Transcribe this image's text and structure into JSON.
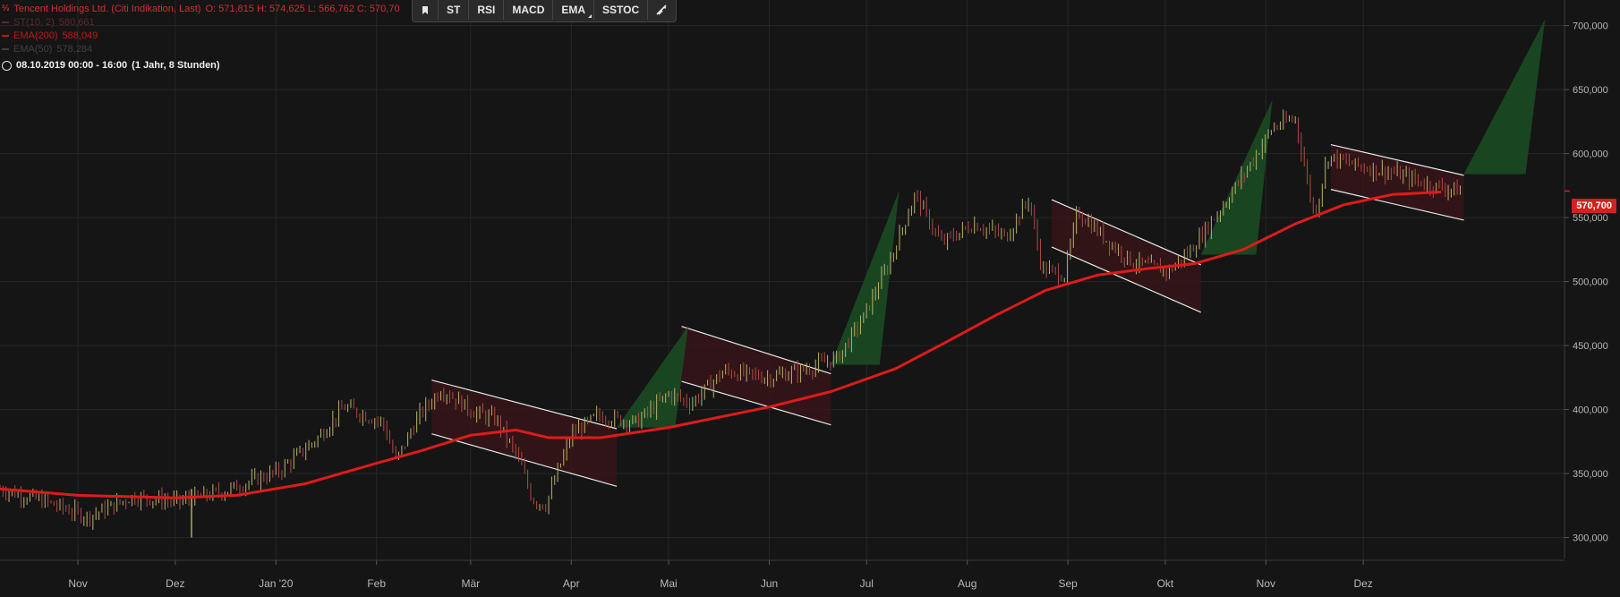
{
  "header": {
    "title": "Tencent Holdings Ltd. (Citi Indikation, Last)",
    "ohlc": "O: 571,815  H: 574,625  L: 566,762  C: 570,70",
    "indicators": [
      {
        "label": "ST(10, 2)",
        "value": "580,661",
        "color": "#5a2a2a"
      },
      {
        "label": "EMA(200)",
        "value": "588,049",
        "color": "#c01818"
      },
      {
        "label": "EMA(50)",
        "value": "578,284",
        "color": "#404040"
      }
    ],
    "range": "08.10.2019 00:00 - 16:00",
    "range_detail": "(1 Jahr, 8 Stunden)"
  },
  "toolbar": {
    "items": [
      {
        "label": "",
        "icon": "bookmark-icon"
      },
      {
        "label": "ST"
      },
      {
        "label": "RSI"
      },
      {
        "label": "MACD"
      },
      {
        "label": "EMA",
        "dropdown": true
      },
      {
        "label": "SSTOC"
      },
      {
        "label": "",
        "icon": "draw-tool-icon"
      }
    ]
  },
  "last_price": "570,700",
  "colors": {
    "background": "#151515",
    "ema": "#e01a1a",
    "channel_fill": "#3a1418",
    "target_fill": "#1b4a22",
    "grid": "#262626",
    "axis_text": "#b8b8b8"
  },
  "chart_data": {
    "type": "ohlc",
    "y_axis": {
      "ticks": [
        "300,000",
        "350,000",
        "400,000",
        "450,000",
        "500,000",
        "550,000",
        "600,000",
        "650,000",
        "700,000"
      ],
      "ylim": [
        285000,
        720000
      ]
    },
    "x_axis": {
      "ticks": [
        "Nov",
        "Dez",
        "Jan '20",
        "Feb",
        "Mär",
        "Apr",
        "Mai",
        "Jun",
        "Jul",
        "Aug",
        "Sep",
        "Okt",
        "Nov",
        "Dez"
      ]
    },
    "price_path": [
      [
        "2019-10-08",
        338
      ],
      [
        "2019-10-22",
        328
      ],
      [
        "2019-11-04",
        316
      ],
      [
        "2019-11-18",
        332
      ],
      [
        "2019-12-02",
        328
      ],
      [
        "2019-12-16",
        336
      ],
      [
        "2020-01-02",
        352
      ],
      [
        "2020-01-14",
        378
      ],
      [
        "2020-01-22",
        402
      ],
      [
        "2020-02-03",
        390
      ],
      [
        "2020-02-07",
        360
      ],
      [
        "2020-02-14",
        395
      ],
      [
        "2020-02-21",
        416
      ],
      [
        "2020-03-02",
        398
      ],
      [
        "2020-03-09",
        392
      ],
      [
        "2020-03-16",
        360
      ],
      [
        "2020-03-20",
        330
      ],
      [
        "2020-03-24",
        325
      ],
      [
        "2020-04-01",
        380
      ],
      [
        "2020-04-09",
        395
      ],
      [
        "2020-04-21",
        390
      ],
      [
        "2020-05-01",
        412
      ],
      [
        "2020-05-08",
        405
      ],
      [
        "2020-05-18",
        430
      ],
      [
        "2020-06-01",
        425
      ],
      [
        "2020-06-10",
        430
      ],
      [
        "2020-06-22",
        440
      ],
      [
        "2020-06-30",
        472
      ],
      [
        "2020-07-08",
        515
      ],
      [
        "2020-07-16",
        568
      ],
      [
        "2020-07-24",
        530
      ],
      [
        "2020-08-03",
        545
      ],
      [
        "2020-08-13",
        535
      ],
      [
        "2020-08-20",
        565
      ],
      [
        "2020-08-24",
        510
      ],
      [
        "2020-08-31",
        505
      ],
      [
        "2020-09-04",
        555
      ],
      [
        "2020-09-14",
        530
      ],
      [
        "2020-09-21",
        515
      ],
      [
        "2020-10-02",
        508
      ],
      [
        "2020-10-09",
        525
      ],
      [
        "2020-10-19",
        560
      ],
      [
        "2020-10-28",
        595
      ],
      [
        "2020-11-03",
        620
      ],
      [
        "2020-11-10",
        628
      ],
      [
        "2020-11-16",
        550
      ],
      [
        "2020-11-20",
        598
      ],
      [
        "2020-11-30",
        590
      ],
      [
        "2020-12-10",
        585
      ],
      [
        "2020-12-22",
        575
      ],
      [
        "2020-12-31",
        571
      ]
    ],
    "ema200": [
      [
        "2019-10-08",
        338
      ],
      [
        "2019-11-01",
        333
      ],
      [
        "2019-12-01",
        331
      ],
      [
        "2019-12-20",
        333
      ],
      [
        "2020-01-10",
        342
      ],
      [
        "2020-02-01",
        358
      ],
      [
        "2020-02-15",
        368
      ],
      [
        "2020-03-01",
        380
      ],
      [
        "2020-03-15",
        384
      ],
      [
        "2020-03-25",
        378
      ],
      [
        "2020-04-10",
        378
      ],
      [
        "2020-05-01",
        386
      ],
      [
        "2020-06-01",
        402
      ],
      [
        "2020-06-20",
        414
      ],
      [
        "2020-07-10",
        432
      ],
      [
        "2020-07-25",
        452
      ],
      [
        "2020-08-10",
        474
      ],
      [
        "2020-08-25",
        493
      ],
      [
        "2020-09-10",
        505
      ],
      [
        "2020-09-25",
        510
      ],
      [
        "2020-10-10",
        514
      ],
      [
        "2020-10-25",
        525
      ],
      [
        "2020-11-10",
        545
      ],
      [
        "2020-11-25",
        560
      ],
      [
        "2020-12-10",
        568
      ],
      [
        "2020-12-25",
        570
      ]
    ],
    "channels": [
      {
        "start": "2020-02-18",
        "end": "2020-04-15",
        "upper": [
          423,
          385
        ],
        "lower": [
          381,
          340
        ]
      },
      {
        "start": "2020-05-05",
        "end": "2020-06-20",
        "upper": [
          465,
          428
        ],
        "lower": [
          422,
          388
        ]
      },
      {
        "start": "2020-08-27",
        "end": "2020-10-12",
        "upper": [
          564,
          513
        ],
        "lower": [
          527,
          476
        ]
      },
      {
        "start": "2020-11-21",
        "end": "2021-01-01",
        "upper": [
          607,
          583
        ],
        "lower": [
          572,
          548
        ]
      }
    ],
    "targets": [
      {
        "base_start": "2020-04-15",
        "base_end": "2020-05-03",
        "base": 386,
        "tip": "2020-05-07",
        "tip_value": 465
      },
      {
        "base_start": "2020-06-20",
        "base_end": "2020-07-05",
        "base": 435,
        "tip": "2020-07-11",
        "tip_value": 571
      },
      {
        "base_start": "2020-10-12",
        "base_end": "2020-10-29",
        "base": 521,
        "tip": "2020-11-03",
        "tip_value": 642
      },
      {
        "base_start": "2021-01-01",
        "base_end": "2021-01-20",
        "base": 584,
        "tip": "2021-01-26",
        "tip_value": 705
      }
    ]
  }
}
